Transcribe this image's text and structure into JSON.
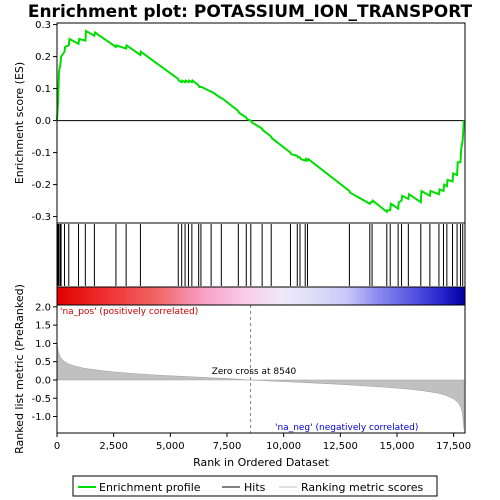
{
  "chart_data": {
    "type": "line",
    "title": "Enrichment plot: POTASSIUM_ION_TRANSPORT",
    "xlabel": "Rank in Ordered Dataset",
    "x_ticks": [
      "0",
      "2,500",
      "5,000",
      "7,500",
      "10,000",
      "12,500",
      "15,000",
      "17,500"
    ],
    "xlim": [
      0,
      18000
    ],
    "panels": {
      "enrichment": {
        "ylabel": "Enrichment score (ES)",
        "ylim": [
          -0.32,
          0.305
        ],
        "y_ticks": [
          "0.3",
          "0.2",
          "0.1",
          "0.0",
          "-0.1",
          "-0.2",
          "-0.3"
        ],
        "y_tick_values": [
          0.3,
          0.2,
          0.1,
          0.0,
          -0.1,
          -0.2,
          -0.3
        ],
        "series": [
          {
            "name": "Enrichment profile",
            "color": "#00dd00",
            "x": [
              0,
              40,
              70,
              90,
              150,
              180,
              330,
              360,
              520,
              550,
              950,
              980,
              1250,
              1280,
              1650,
              1680,
              2600,
              2620,
              3050,
              3070,
              3680,
              3700,
              5350,
              5370,
              5500,
              5520,
              5650,
              5680,
              5800,
              5830,
              5950,
              5980,
              6250,
              6280,
              6350,
              6380,
              6800,
              6830,
              7250,
              7280,
              8000,
              8020,
              8350,
              8380,
              8550,
              8580,
              9050,
              9080,
              9450,
              9480,
              10300,
              10330,
              10600,
              10630,
              10720,
              10750,
              10950,
              10980,
              11050,
              11080,
              12900,
              12930,
              13800,
              13830,
              13900,
              13930,
              14550,
              14580,
              14700,
              14730,
              15050,
              15080,
              15200,
              15230,
              15500,
              15530,
              16050,
              16080,
              16450,
              16480,
              16850,
              16880,
              17050,
              17080,
              17200,
              17230,
              17450,
              17480,
              17650,
              17680,
              17800,
              17830,
              17900,
              17950
            ],
            "y": [
              0.0,
              0.05,
              0.11,
              0.155,
              0.175,
              0.2,
              0.215,
              0.23,
              0.235,
              0.255,
              0.24,
              0.255,
              0.25,
              0.28,
              0.265,
              0.275,
              0.23,
              0.235,
              0.225,
              0.235,
              0.205,
              0.215,
              0.13,
              0.125,
              0.12,
              0.125,
              0.12,
              0.125,
              0.12,
              0.125,
              0.12,
              0.125,
              0.11,
              0.105,
              0.105,
              0.105,
              0.09,
              0.09,
              0.07,
              0.07,
              0.03,
              0.025,
              0.01,
              0.005,
              0.0,
              -0.005,
              -0.025,
              -0.03,
              -0.05,
              -0.055,
              -0.1,
              -0.105,
              -0.11,
              -0.115,
              -0.115,
              -0.12,
              -0.125,
              -0.12,
              -0.125,
              -0.12,
              -0.22,
              -0.225,
              -0.26,
              -0.255,
              -0.255,
              -0.25,
              -0.285,
              -0.28,
              -0.28,
              -0.26,
              -0.275,
              -0.255,
              -0.25,
              -0.235,
              -0.245,
              -0.23,
              -0.255,
              -0.22,
              -0.235,
              -0.22,
              -0.23,
              -0.215,
              -0.22,
              -0.2,
              -0.205,
              -0.185,
              -0.19,
              -0.165,
              -0.17,
              -0.13,
              -0.13,
              -0.09,
              -0.06,
              0.0
            ]
          }
        ]
      },
      "hits": {
        "series_name": "Hits",
        "ranks": [
          40,
          70,
          90,
          150,
          180,
          330,
          520,
          950,
          1250,
          1650,
          2600,
          3050,
          3680,
          5350,
          5500,
          5650,
          5800,
          5950,
          6250,
          6350,
          6800,
          7250,
          8000,
          8350,
          8550,
          9050,
          9450,
          10300,
          10600,
          10720,
          10950,
          11050,
          12900,
          13800,
          13900,
          14550,
          14700,
          15050,
          15200,
          15500,
          16050,
          16450,
          16850,
          17050,
          17200,
          17450,
          17650,
          17800,
          17900
        ]
      },
      "ranked_metric": {
        "series_name": "Ranking metric scores",
        "ylabel": "Ranked list metric (PreRanked)",
        "ylim": [
          -1.45,
          2.05
        ],
        "y_ticks": [
          "2.0",
          "1.5",
          "1.0",
          "0.5",
          "0.0",
          "-0.5",
          "-1.0"
        ],
        "y_tick_values": [
          2.0,
          1.5,
          1.0,
          0.5,
          0.0,
          -0.5,
          -1.0
        ],
        "x": [
          0,
          50,
          150,
          300,
          500,
          800,
          1200,
          1800,
          2500,
          3500,
          4500,
          5500,
          6500,
          7500,
          8540,
          9500,
          10500,
          11500,
          12500,
          13500,
          14500,
          15500,
          16200,
          16800,
          17200,
          17500,
          17700,
          17820,
          17880,
          17920,
          17950
        ],
        "values": [
          1.05,
          0.8,
          0.62,
          0.52,
          0.44,
          0.38,
          0.32,
          0.27,
          0.22,
          0.17,
          0.13,
          0.1,
          0.07,
          0.04,
          0.0,
          -0.03,
          -0.06,
          -0.09,
          -0.12,
          -0.16,
          -0.2,
          -0.25,
          -0.3,
          -0.36,
          -0.43,
          -0.52,
          -0.62,
          -0.75,
          -0.9,
          -1.1,
          -1.35
        ]
      }
    },
    "annotations": {
      "pos_label": "'na_pos' (positively correlated)",
      "neg_label": "'na_neg' (negatively correlated)",
      "zero_cross": "Zero cross at 8540",
      "zero_cross_rank": 8540
    },
    "legend": {
      "placement": "bottom",
      "entries": [
        {
          "label": "Enrichment profile",
          "color": "#00dd00"
        },
        {
          "label": "Hits",
          "color": "#000000"
        },
        {
          "label": "Ranking metric scores",
          "color": "#c0c0c0"
        }
      ]
    },
    "colors": {
      "profile": "#00dd00",
      "metric_fill": "#c0c0c0",
      "pos_text": "#cc0000",
      "neg_text": "#0000cc",
      "zero_line": "#808080"
    }
  }
}
